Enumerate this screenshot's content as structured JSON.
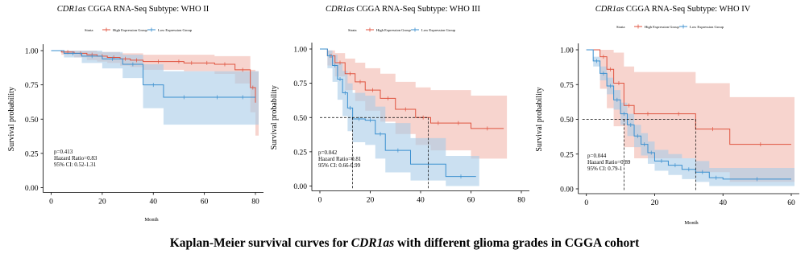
{
  "caption": {
    "prefix": "Kaplan-Meier survival curves for ",
    "gene": "CDR1as",
    "suffix": " with different glioma grades in CGGA cohort"
  },
  "colors": {
    "high": "#e0533f",
    "low": "#3a8fcf",
    "high_fill": "#f2b8ad",
    "low_fill": "#a9cce8",
    "axis": "#000000"
  },
  "chart_data": [
    {
      "type": "line",
      "title_gene": "CDR1as",
      "title_rest": " CGGA RNA-Seq Subtype: WHO II",
      "legend_title": "Strata",
      "legend_placement": "top",
      "xlabel": "Month",
      "ylabel": "Survival probability",
      "xlim": [
        0,
        82
      ],
      "ylim": [
        0,
        1
      ],
      "x_ticks": [
        "0",
        "20",
        "40",
        "60",
        "80"
      ],
      "y_ticks": [
        "0.00",
        "0.25",
        "0.50",
        "0.75",
        "1.00"
      ],
      "annotations": [
        "p=0.413",
        "Hazard Ratio=0.83",
        "95% CI: 0.52-1.31"
      ],
      "median_lines": [],
      "series": [
        {
          "name": "High Expression Group",
          "x": [
            0,
            4,
            9,
            14,
            18,
            22,
            27,
            31,
            36,
            48,
            52,
            58,
            64,
            72,
            78,
            80
          ],
          "y": [
            1.0,
            0.99,
            0.98,
            0.97,
            0.96,
            0.95,
            0.94,
            0.93,
            0.92,
            0.92,
            0.91,
            0.91,
            0.9,
            0.86,
            0.73,
            0.62
          ],
          "upper": [
            1.0,
            1.0,
            1.0,
            1.0,
            0.99,
            0.99,
            0.98,
            0.98,
            0.97,
            0.97,
            0.97,
            0.97,
            0.96,
            0.96,
            0.86,
            0.85
          ],
          "lower": [
            1.0,
            0.97,
            0.95,
            0.93,
            0.92,
            0.91,
            0.89,
            0.88,
            0.86,
            0.86,
            0.85,
            0.85,
            0.83,
            0.76,
            0.55,
            0.38
          ]
        },
        {
          "name": "Low Expression Group",
          "x": [
            0,
            5,
            12,
            20,
            28,
            36,
            44,
            60,
            70,
            80
          ],
          "y": [
            1.0,
            0.98,
            0.96,
            0.94,
            0.9,
            0.75,
            0.66,
            0.66,
            0.66,
            0.66
          ],
          "upper": [
            1.0,
            1.0,
            1.0,
            0.99,
            0.97,
            0.9,
            0.85,
            0.85,
            0.85,
            0.85
          ],
          "lower": [
            1.0,
            0.95,
            0.91,
            0.87,
            0.8,
            0.58,
            0.46,
            0.46,
            0.46,
            0.46
          ]
        }
      ]
    },
    {
      "type": "line",
      "title_gene": "CDR1as",
      "title_rest": " CGGA RNA-Seq Subtype: WHO III",
      "legend_title": "Strata",
      "legend_placement": "top",
      "xlabel": "",
      "ylabel": "Survival probability",
      "xlim": [
        0,
        80
      ],
      "ylim": [
        0,
        1
      ],
      "x_ticks": [
        "0",
        "20",
        "40",
        "60",
        "80"
      ],
      "y_ticks": [
        "0.00",
        "0.25",
        "0.50",
        "0.75",
        "1.00"
      ],
      "annotations": [
        "p=0.042",
        "Hazard Ratio=0.81",
        "95% CI: 0.66-0.99"
      ],
      "median_lines": [
        13,
        43
      ],
      "series": [
        {
          "name": "High Expression Group",
          "x": [
            0,
            3,
            6,
            10,
            14,
            18,
            24,
            30,
            38,
            44,
            50,
            60,
            73
          ],
          "y": [
            1.0,
            0.95,
            0.9,
            0.82,
            0.76,
            0.7,
            0.64,
            0.56,
            0.5,
            0.46,
            0.46,
            0.42,
            0.42
          ],
          "upper": [
            1.0,
            0.99,
            0.97,
            0.93,
            0.9,
            0.86,
            0.82,
            0.76,
            0.72,
            0.7,
            0.7,
            0.66,
            0.66
          ],
          "lower": [
            1.0,
            0.88,
            0.8,
            0.7,
            0.62,
            0.55,
            0.47,
            0.38,
            0.3,
            0.26,
            0.26,
            0.2,
            0.2
          ]
        },
        {
          "name": "Low Expression Group",
          "x": [
            0,
            3,
            5,
            7,
            9,
            11,
            13,
            18,
            22,
            26,
            36,
            50,
            62
          ],
          "y": [
            1.0,
            0.95,
            0.88,
            0.78,
            0.68,
            0.57,
            0.49,
            0.48,
            0.38,
            0.26,
            0.16,
            0.07,
            0.07
          ],
          "upper": [
            1.0,
            0.99,
            0.96,
            0.9,
            0.84,
            0.75,
            0.68,
            0.66,
            0.58,
            0.46,
            0.35,
            0.22,
            0.22
          ],
          "lower": [
            1.0,
            0.86,
            0.76,
            0.63,
            0.51,
            0.4,
            0.32,
            0.3,
            0.2,
            0.1,
            0.04,
            0.0,
            0.0
          ]
        }
      ]
    },
    {
      "type": "line",
      "title_gene": "CDR1as",
      "title_rest": " CGGA RNA-Seq Subtype: WHO IV",
      "legend_title": "Strata",
      "legend_placement": "top",
      "xlabel": "Month",
      "ylabel": "Survival probability",
      "xlim": [
        -2,
        62
      ],
      "ylim": [
        0,
        1
      ],
      "x_ticks": [
        "0",
        "20",
        "40",
        "60"
      ],
      "y_ticks": [
        "0.00",
        "0.25",
        "0.50",
        "0.75",
        "1.00"
      ],
      "annotations": [
        "p=0.044",
        "Hazard Ratio=0.89",
        "95% CI: 0.79-1"
      ],
      "median_lines": [
        11,
        32
      ],
      "series": [
        {
          "name": "High Expression Group",
          "x": [
            0,
            4,
            6,
            8,
            11,
            14,
            22,
            32,
            42,
            60
          ],
          "y": [
            1.0,
            0.95,
            0.86,
            0.76,
            0.6,
            0.54,
            0.54,
            0.43,
            0.32,
            0.32
          ],
          "upper": [
            1.0,
            1.0,
            1.0,
            0.98,
            0.88,
            0.84,
            0.84,
            0.76,
            0.66,
            0.66
          ],
          "lower": [
            1.0,
            0.72,
            0.58,
            0.45,
            0.3,
            0.22,
            0.22,
            0.12,
            0.05,
            0.05
          ]
        },
        {
          "name": "Low Expression Group",
          "x": [
            0,
            2,
            4,
            6,
            8,
            10,
            12,
            14,
            16,
            18,
            20,
            24,
            28,
            32,
            36,
            40,
            60
          ],
          "y": [
            1.0,
            0.92,
            0.83,
            0.74,
            0.64,
            0.54,
            0.46,
            0.38,
            0.32,
            0.26,
            0.2,
            0.17,
            0.14,
            0.12,
            0.08,
            0.07,
            0.07
          ],
          "upper": [
            1.0,
            0.95,
            0.88,
            0.8,
            0.71,
            0.62,
            0.54,
            0.46,
            0.4,
            0.34,
            0.28,
            0.25,
            0.22,
            0.2,
            0.15,
            0.15,
            0.15
          ],
          "lower": [
            1.0,
            0.88,
            0.78,
            0.68,
            0.57,
            0.46,
            0.38,
            0.3,
            0.24,
            0.18,
            0.13,
            0.1,
            0.07,
            0.05,
            0.02,
            0.02,
            0.02
          ]
        }
      ]
    }
  ]
}
